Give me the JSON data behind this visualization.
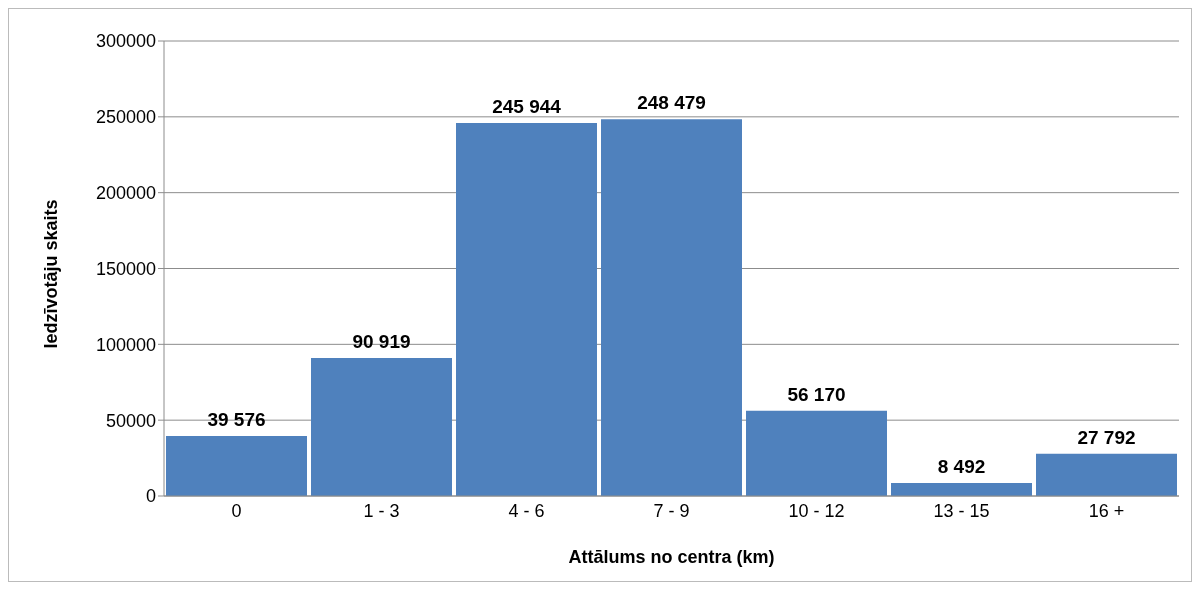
{
  "chart_data": {
    "type": "bar",
    "xlabel": "Attālums no centra (km)",
    "ylabel": "Iedzīvotāju skaits",
    "categories": [
      "0",
      "1 - 3",
      "4 - 6",
      "7 - 9",
      "10 - 12",
      "13 - 15",
      "16 +"
    ],
    "values": [
      39576,
      90919,
      245944,
      248479,
      56170,
      8492,
      27792
    ],
    "value_labels": [
      "39 576",
      "90 919",
      "245 944",
      "248 479",
      "56 170",
      "8 492",
      "27 792"
    ],
    "color": "#4f81bd",
    "ylim": [
      0,
      300000
    ],
    "yticks": [
      0,
      50000,
      100000,
      150000,
      200000,
      250000,
      300000
    ],
    "grid": "y"
  }
}
